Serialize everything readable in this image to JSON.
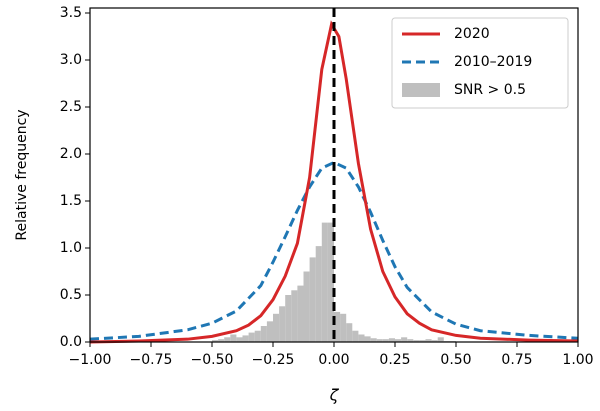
{
  "chart_data": {
    "type": "line",
    "xlabel": "ζ",
    "ylabel": "Relative frequency",
    "xlim": [
      -1,
      1
    ],
    "xticks": [
      {
        "value": -1,
        "label": "−1.00"
      },
      {
        "value": -0.75,
        "label": "−0.75"
      },
      {
        "value": -0.5,
        "label": "−0.50"
      },
      {
        "value": -0.25,
        "label": "−0.25"
      },
      {
        "value": 0,
        "label": "0.00"
      },
      {
        "value": 0.25,
        "label": "0.25"
      },
      {
        "value": 0.5,
        "label": "0.50"
      },
      {
        "value": 0.75,
        "label": "0.75"
      },
      {
        "value": 1,
        "label": "1.00"
      }
    ],
    "ylim": [
      0,
      3.5
    ],
    "yticks": [
      {
        "value": 0,
        "label": "0.0"
      },
      0.5,
      {
        "value": 1,
        "label": "1.0"
      },
      1.5,
      {
        "value": 2,
        "label": "2.0"
      },
      2.5,
      {
        "value": 3,
        "label": "3.0"
      },
      3.5
    ],
    "legend": "upper right",
    "histogram": {
      "name": "SNR > 0.5",
      "color": "#bfbfbf",
      "bins": [
        -0.5,
        -0.475,
        -0.45,
        -0.425,
        -0.4,
        -0.375,
        -0.35,
        -0.325,
        -0.3,
        -0.275,
        -0.25,
        -0.225,
        -0.2,
        -0.175,
        -0.15,
        -0.125,
        -0.1,
        -0.075,
        -0.05,
        -0.025,
        0,
        0.025,
        0.05,
        0.075,
        0.1,
        0.125,
        0.15,
        0.175,
        0.2,
        0.225,
        0.25,
        0.275,
        0.3,
        0.325,
        0.35,
        0.375,
        0.4,
        0.425,
        0.45,
        0.475,
        0.5
      ],
      "counts": [
        0.02,
        0.03,
        0.05,
        0.08,
        0.05,
        0.07,
        0.1,
        0.12,
        0.17,
        0.22,
        0.3,
        0.38,
        0.5,
        0.55,
        0.6,
        0.75,
        0.9,
        1.02,
        1.27,
        1.27,
        0.32,
        0.3,
        0.2,
        0.12,
        0.08,
        0.06,
        0.04,
        0.03,
        0.03,
        0.04,
        0.03,
        0.05,
        0.03,
        0.02,
        0.02,
        0.03,
        0.02,
        0.05,
        0.01,
        0.01
      ]
    },
    "series": [
      {
        "name": "2010–2019",
        "color": "#1f77b4",
        "style": "dashed",
        "x": [
          -1,
          -0.8,
          -0.6,
          -0.5,
          -0.4,
          -0.3,
          -0.25,
          -0.2,
          -0.15,
          -0.1,
          -0.05,
          0,
          0.05,
          0.1,
          0.15,
          0.2,
          0.25,
          0.3,
          0.4,
          0.5,
          0.6,
          0.8,
          1
        ],
        "values": [
          0.03,
          0.06,
          0.13,
          0.2,
          0.33,
          0.6,
          0.85,
          1.12,
          1.4,
          1.65,
          1.85,
          1.91,
          1.85,
          1.65,
          1.38,
          1.08,
          0.8,
          0.58,
          0.32,
          0.19,
          0.12,
          0.07,
          0.04
        ]
      },
      {
        "name": "2020",
        "color": "#d62728",
        "style": "solid",
        "x": [
          -1,
          -0.8,
          -0.6,
          -0.5,
          -0.4,
          -0.35,
          -0.3,
          -0.25,
          -0.2,
          -0.15,
          -0.1,
          -0.05,
          -0.01,
          0.02,
          0.05,
          0.1,
          0.15,
          0.2,
          0.25,
          0.3,
          0.35,
          0.4,
          0.5,
          0.6,
          0.8,
          1
        ],
        "values": [
          0,
          0.01,
          0.03,
          0.06,
          0.12,
          0.18,
          0.28,
          0.45,
          0.7,
          1.05,
          1.75,
          2.9,
          3.38,
          3.25,
          2.8,
          1.9,
          1.2,
          0.75,
          0.48,
          0.3,
          0.2,
          0.13,
          0.07,
          0.04,
          0.02,
          0.01
        ]
      }
    ],
    "vline": {
      "x": 0,
      "color": "#000000",
      "style": "dashed"
    }
  }
}
